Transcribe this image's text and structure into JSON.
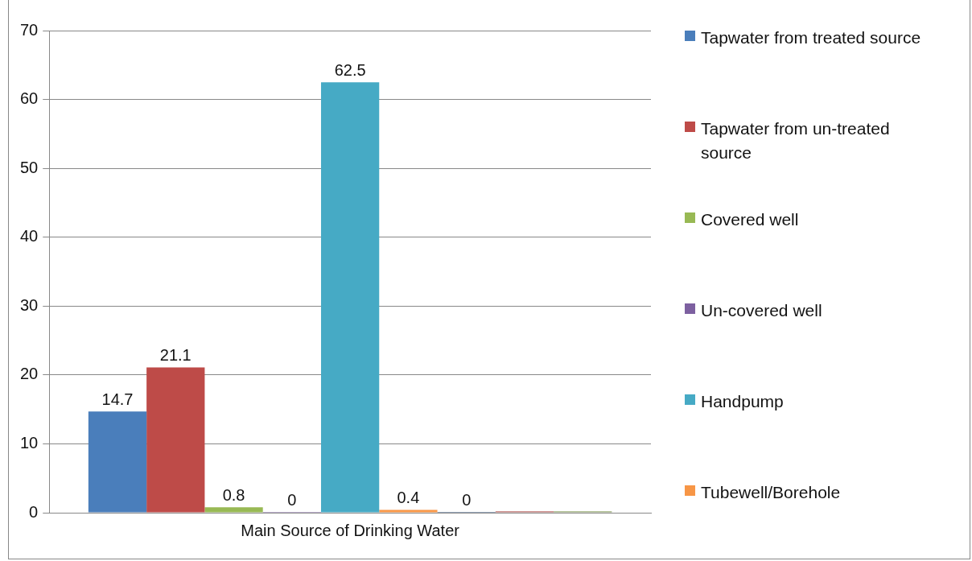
{
  "chart_data": {
    "type": "bar",
    "categories": [
      "Main Source of Drinking Water"
    ],
    "series": [
      {
        "name": "Tapwater from treated source",
        "color": "#4a7ebb",
        "values": [
          14.7
        ],
        "value_labels": [
          "14.7"
        ]
      },
      {
        "name": "Tapwater from un-treated source",
        "color": "#be4b48",
        "values": [
          21.1
        ],
        "value_labels": [
          "21.1"
        ]
      },
      {
        "name": "Covered well",
        "color": "#98b954",
        "values": [
          0.8
        ],
        "value_labels": [
          "0.8"
        ]
      },
      {
        "name": "Un-covered well",
        "color": "#7d60a0",
        "values": [
          0
        ],
        "value_labels": [
          "0"
        ]
      },
      {
        "name": "Handpump",
        "color": "#46aac5",
        "values": [
          62.5
        ],
        "value_labels": [
          "62.5"
        ]
      },
      {
        "name": "Tubewell/Borehole",
        "color": "#f79646",
        "values": [
          0.4
        ],
        "value_labels": [
          "0.4"
        ]
      },
      {
        "color": "#2c4d75",
        "values": [
          0
        ],
        "value_labels": [
          "0"
        ]
      },
      {
        "color": "#b96b69",
        "values": [
          0.2
        ],
        "value_labels": [
          null
        ]
      },
      {
        "color": "#95a872",
        "values": [
          0.2
        ],
        "value_labels": [
          null
        ]
      }
    ],
    "ylim": [
      0,
      70
    ],
    "yticks": [
      0,
      10,
      20,
      30,
      40,
      50,
      60,
      70
    ],
    "grid": "y",
    "legend": "right"
  }
}
